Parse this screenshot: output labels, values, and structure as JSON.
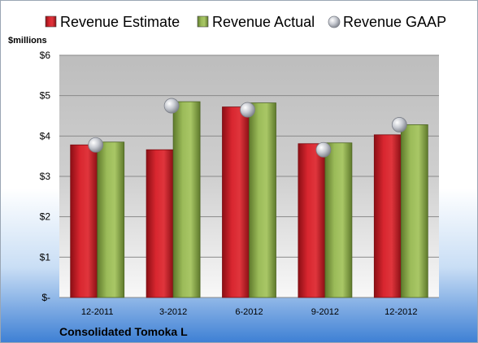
{
  "chart_data": {
    "type": "bar",
    "ylabel": "$millions",
    "categories": [
      "12-2011",
      "3-2012",
      "6-2012",
      "9-2012",
      "12-2012"
    ],
    "series": [
      {
        "name": "Revenue Estimate",
        "type": "bar",
        "color": "#c8202a",
        "values": [
          3.78,
          3.66,
          4.72,
          3.81,
          4.03
        ]
      },
      {
        "name": "Revenue Actual",
        "type": "bar",
        "color": "#8fac4e",
        "values": [
          3.85,
          4.85,
          4.82,
          3.83,
          4.28
        ]
      },
      {
        "name": "Revenue GAAP",
        "type": "scatter",
        "color": "#b9bcc4",
        "values": [
          3.78,
          4.75,
          4.65,
          3.66,
          4.28
        ]
      }
    ],
    "ylim": [
      0,
      6
    ],
    "yticks": [
      0,
      1,
      2,
      3,
      4,
      5,
      6
    ],
    "ytick_labels": [
      "$-",
      "$1",
      "$2",
      "$3",
      "$4",
      "$5",
      "$6"
    ],
    "grid": true,
    "legend_position": "top",
    "company": "Consolidated Tomoka L"
  }
}
